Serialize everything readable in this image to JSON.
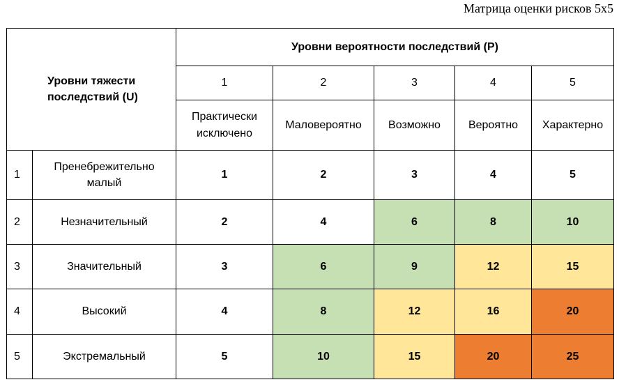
{
  "caption": "Матрица оценки рисков 5х5",
  "severity_header": "Уровни тяжести последствий (U)",
  "probability_header": "Уровни вероятности последствий (P)",
  "probability_levels": [
    {
      "num": "1",
      "label": "Практически исключено"
    },
    {
      "num": "2",
      "label": "Маловероятно"
    },
    {
      "num": "3",
      "label": "Возможно"
    },
    {
      "num": "4",
      "label": "Вероятно"
    },
    {
      "num": "5",
      "label": "Характерно"
    }
  ],
  "rows": [
    {
      "num": "1",
      "label": "Пренебрежительно малый",
      "cells": [
        {
          "value": "1",
          "level": "white"
        },
        {
          "value": "2",
          "level": "white"
        },
        {
          "value": "3",
          "level": "white"
        },
        {
          "value": "4",
          "level": "white"
        },
        {
          "value": "5",
          "level": "white"
        }
      ]
    },
    {
      "num": "2",
      "label": "Незначительный",
      "cells": [
        {
          "value": "2",
          "level": "white"
        },
        {
          "value": "4",
          "level": "white"
        },
        {
          "value": "6",
          "level": "green"
        },
        {
          "value": "8",
          "level": "green"
        },
        {
          "value": "10",
          "level": "green"
        }
      ]
    },
    {
      "num": "3",
      "label": "Значительный",
      "cells": [
        {
          "value": "3",
          "level": "white"
        },
        {
          "value": "6",
          "level": "green"
        },
        {
          "value": "9",
          "level": "green"
        },
        {
          "value": "12",
          "level": "yellow"
        },
        {
          "value": "15",
          "level": "yellow"
        }
      ]
    },
    {
      "num": "4",
      "label": "Высокий",
      "cells": [
        {
          "value": "4",
          "level": "white"
        },
        {
          "value": "8",
          "level": "green"
        },
        {
          "value": "12",
          "level": "yellow"
        },
        {
          "value": "16",
          "level": "yellow"
        },
        {
          "value": "20",
          "level": "orange"
        }
      ]
    },
    {
      "num": "5",
      "label": "Экстремальный",
      "cells": [
        {
          "value": "5",
          "level": "white"
        },
        {
          "value": "10",
          "level": "green"
        },
        {
          "value": "15",
          "level": "yellow"
        },
        {
          "value": "20",
          "level": "orange"
        },
        {
          "value": "25",
          "level": "orange"
        }
      ]
    }
  ],
  "colors": {
    "white": "#ffffff",
    "green": "#c6e0b4",
    "yellow": "#ffe699",
    "orange": "#ed7d31"
  }
}
